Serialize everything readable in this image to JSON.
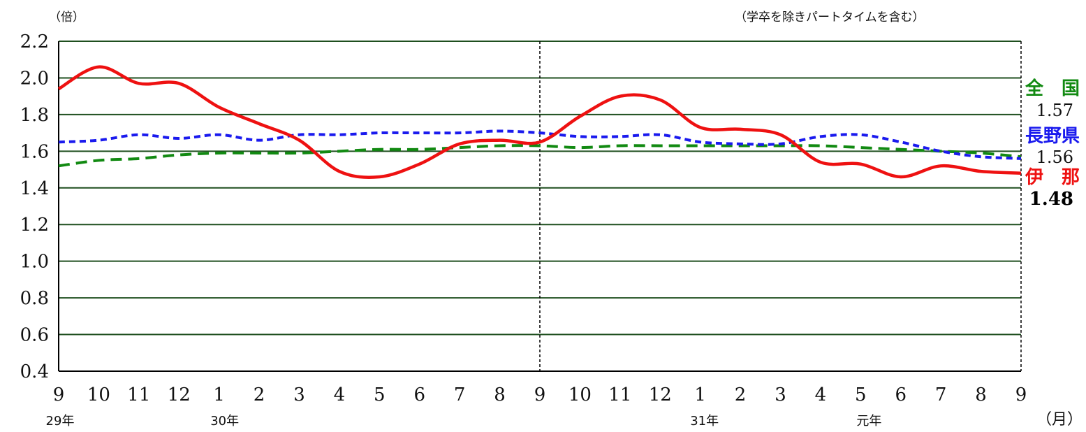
{
  "chart_data": {
    "type": "line",
    "y_unit_label": "（倍）",
    "note": "（学卒を除きパートタイムを含む）",
    "x_unit_label": "（月）",
    "x": [
      "9",
      "10",
      "11",
      "12",
      "1",
      "2",
      "3",
      "4",
      "5",
      "6",
      "7",
      "8",
      "9",
      "10",
      "11",
      "12",
      "1",
      "2",
      "3",
      "4",
      "5",
      "6",
      "7",
      "8",
      "9"
    ],
    "year_labels": [
      {
        "index": 0,
        "label": "29年"
      },
      {
        "index": 4,
        "label": "30年"
      },
      {
        "index": 16,
        "label": "31年"
      },
      {
        "index": 20,
        "label": "元年"
      }
    ],
    "ylim": [
      0.4,
      2.2
    ],
    "yticks": [
      "0.4",
      "0.6",
      "0.8",
      "1.0",
      "1.2",
      "1.4",
      "1.6",
      "1.8",
      "2.0",
      "2.2"
    ],
    "grid": true,
    "divider_index": 12,
    "series": [
      {
        "name": "全　国",
        "end_label": "1.57",
        "color": "#128a12",
        "dash": "long",
        "values": [
          1.52,
          1.55,
          1.56,
          1.58,
          1.59,
          1.59,
          1.59,
          1.6,
          1.61,
          1.61,
          1.62,
          1.63,
          1.63,
          1.62,
          1.63,
          1.63,
          1.63,
          1.63,
          1.63,
          1.63,
          1.62,
          1.61,
          1.6,
          1.59,
          1.57
        ]
      },
      {
        "name": "長野県",
        "end_label": "1.56",
        "color": "#1a1aee",
        "dash": "short",
        "values": [
          1.65,
          1.66,
          1.69,
          1.67,
          1.69,
          1.66,
          1.69,
          1.69,
          1.7,
          1.7,
          1.7,
          1.71,
          1.7,
          1.68,
          1.68,
          1.69,
          1.65,
          1.64,
          1.64,
          1.68,
          1.69,
          1.65,
          1.6,
          1.57,
          1.56
        ]
      },
      {
        "name": "伊　那",
        "end_label": "1.48",
        "color": "#ee1111",
        "dash": "solid",
        "values": [
          1.94,
          2.06,
          1.97,
          1.97,
          1.84,
          1.75,
          1.66,
          1.49,
          1.46,
          1.53,
          1.64,
          1.66,
          1.65,
          1.79,
          1.9,
          1.88,
          1.73,
          1.72,
          1.69,
          1.54,
          1.53,
          1.46,
          1.52,
          1.49,
          1.48
        ]
      }
    ]
  }
}
